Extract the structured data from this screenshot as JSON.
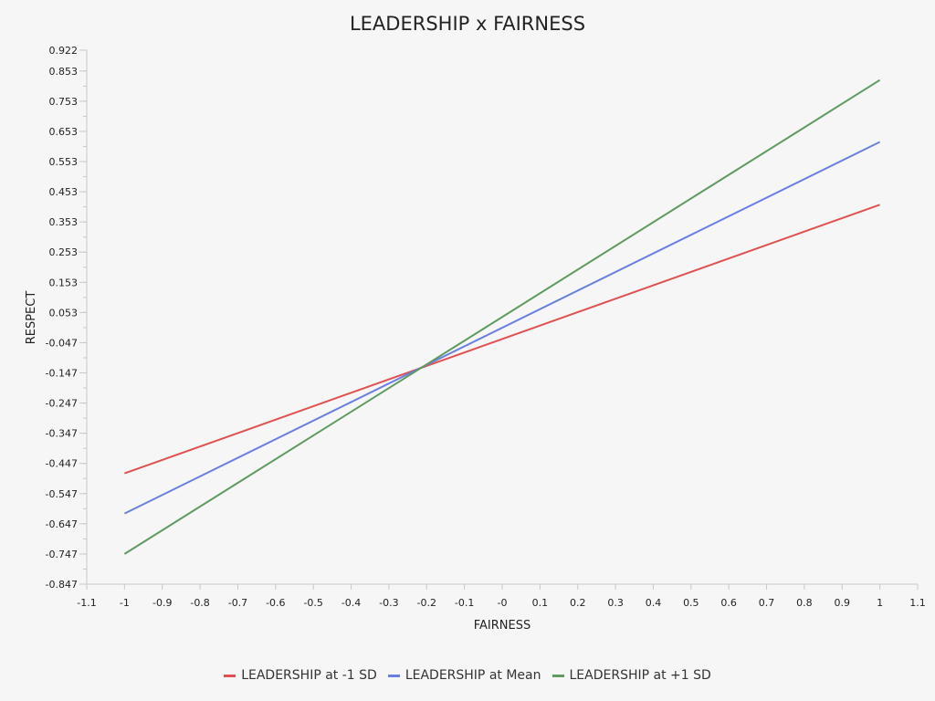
{
  "chart_data": {
    "type": "line",
    "title": "LEADERSHIP x FAIRNESS",
    "xlabel": "FAIRNESS",
    "ylabel": "RESPECT",
    "xlim": [
      -1.1,
      1.1
    ],
    "ylim": [
      -0.847,
      0.922
    ],
    "x_ticks": [
      -1.1,
      -1,
      -0.9,
      -0.8,
      -0.7,
      -0.6,
      -0.5,
      -0.4,
      -0.3,
      -0.2,
      -0.1,
      0,
      0.1,
      0.2,
      0.3,
      0.4,
      0.5,
      0.6,
      0.7,
      0.8,
      0.9,
      1,
      1.1
    ],
    "x_tick_labels": [
      "-1.1",
      "-1",
      "-0.9",
      "-0.8",
      "-0.7",
      "-0.6",
      "-0.5",
      "-0.4",
      "-0.3",
      "-0.2",
      "-0.1",
      "-0",
      "0.1",
      "0.2",
      "0.3",
      "0.4",
      "0.5",
      "0.6",
      "0.7",
      "0.8",
      "0.9",
      "1",
      "1.1"
    ],
    "y_ticks": [
      0.922,
      0.853,
      0.753,
      0.653,
      0.553,
      0.453,
      0.353,
      0.253,
      0.153,
      0.053,
      -0.047,
      -0.147,
      -0.247,
      -0.347,
      -0.447,
      -0.547,
      -0.647,
      -0.747,
      -0.847
    ],
    "y_tick_labels": [
      "0.922",
      "0.853",
      "0.753",
      "0.653",
      "0.553",
      "0.453",
      "0.353",
      "0.253",
      "0.153",
      "0.053",
      "-0.047",
      "-0.147",
      "-0.247",
      "-0.347",
      "-0.447",
      "-0.547",
      "-0.647",
      "-0.747",
      "-0.847"
    ],
    "grid": false,
    "legend_position": "bottom-center",
    "series": [
      {
        "name": "LEADERSHIP at -1 SD",
        "color": "#e05252",
        "x": [
          -1,
          1
        ],
        "y": [
          -0.48,
          0.41
        ]
      },
      {
        "name": "LEADERSHIP at Mean",
        "color": "#6a7fe0",
        "x": [
          -1,
          1
        ],
        "y": [
          -0.613,
          0.618
        ]
      },
      {
        "name": "LEADERSHIP at +1 SD",
        "color": "#5f9a5f",
        "x": [
          -1,
          1
        ],
        "y": [
          -0.747,
          0.823
        ]
      }
    ]
  }
}
